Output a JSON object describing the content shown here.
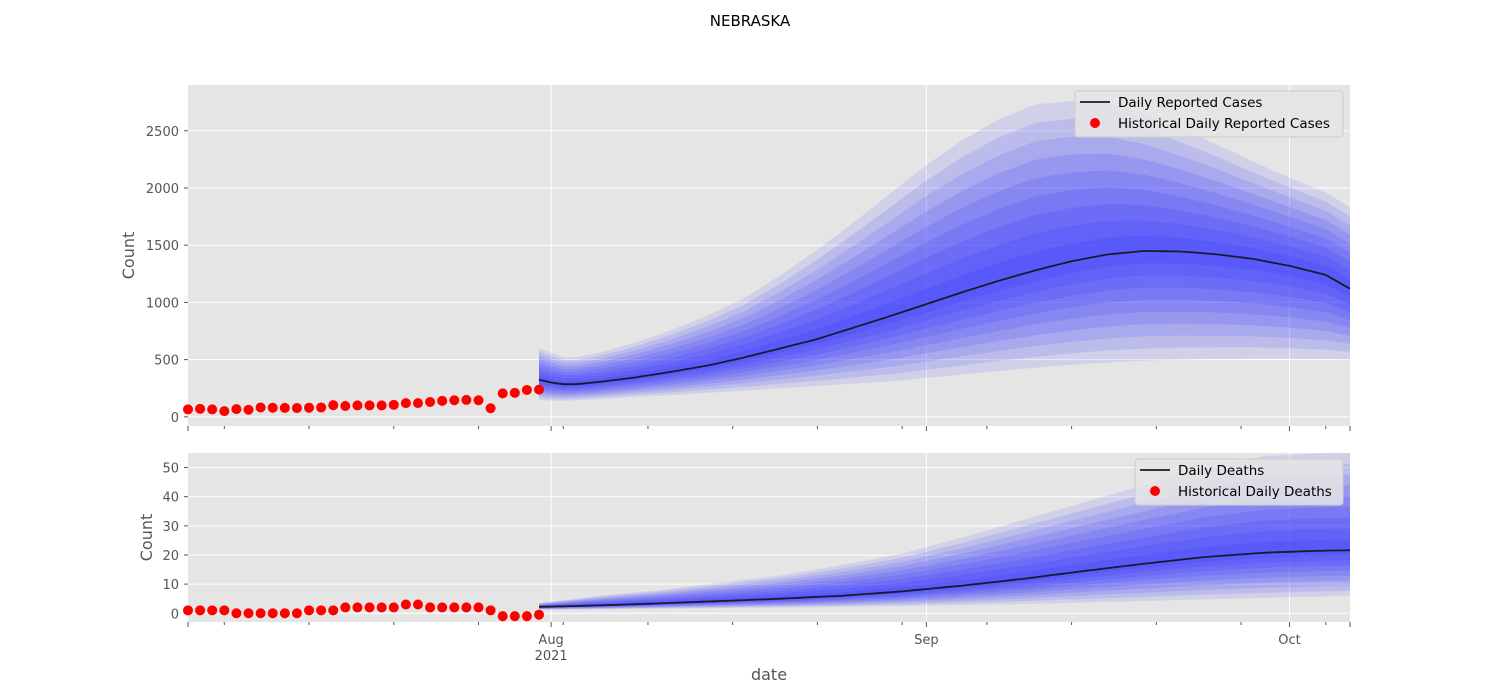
{
  "figure": {
    "title": "NEBRASKA",
    "xlabel": "date"
  },
  "colors": {
    "background": "#e5e5e5",
    "grid": "#ffffff",
    "median": "#1a1a2e",
    "band": "#3b3bff",
    "historical": "#ff0000"
  },
  "chart_data": [
    {
      "type": "line",
      "ylabel": "Count",
      "ylim": [
        -80,
        2900
      ],
      "yticks": [
        0,
        500,
        1000,
        1500,
        2000,
        2500
      ],
      "x_range": [
        "2021-07-02",
        "2021-10-06"
      ],
      "legend": {
        "position": "top-right",
        "entries": [
          "Daily Reported Cases",
          "Historical Daily Reported Cases"
        ]
      },
      "historical": {
        "name": "Historical Daily Reported Cases",
        "dates": [
          "2021-07-02",
          "2021-07-03",
          "2021-07-04",
          "2021-07-05",
          "2021-07-06",
          "2021-07-07",
          "2021-07-08",
          "2021-07-09",
          "2021-07-10",
          "2021-07-11",
          "2021-07-12",
          "2021-07-13",
          "2021-07-14",
          "2021-07-15",
          "2021-07-16",
          "2021-07-17",
          "2021-07-18",
          "2021-07-19",
          "2021-07-20",
          "2021-07-21",
          "2021-07-22",
          "2021-07-23",
          "2021-07-24",
          "2021-07-25",
          "2021-07-26",
          "2021-07-27",
          "2021-07-28",
          "2021-07-29",
          "2021-07-30",
          "2021-07-31"
        ],
        "values": [
          65,
          70,
          65,
          50,
          68,
          62,
          82,
          80,
          78,
          77,
          80,
          82,
          102,
          95,
          100,
          100,
          100,
          105,
          120,
          120,
          130,
          140,
          145,
          148,
          145,
          75,
          205,
          210,
          235,
          238
        ]
      },
      "forecast": {
        "name": "Daily Reported Cases",
        "dates": [
          "2021-07-31",
          "2021-08-01",
          "2021-08-02",
          "2021-08-03",
          "2021-08-05",
          "2021-08-08",
          "2021-08-11",
          "2021-08-14",
          "2021-08-17",
          "2021-08-20",
          "2021-08-23",
          "2021-08-26",
          "2021-08-29",
          "2021-09-01",
          "2021-09-04",
          "2021-09-07",
          "2021-09-10",
          "2021-09-13",
          "2021-09-16",
          "2021-09-19",
          "2021-09-22",
          "2021-09-25",
          "2021-09-28",
          "2021-10-01",
          "2021-10-04",
          "2021-10-06"
        ],
        "median": [
          325,
          300,
          285,
          285,
          305,
          345,
          395,
          450,
          520,
          600,
          680,
          780,
          880,
          985,
          1090,
          1190,
          1280,
          1360,
          1420,
          1450,
          1445,
          1420,
          1380,
          1320,
          1240,
          1120
        ],
        "lower": [
          150,
          140,
          140,
          145,
          155,
          175,
          190,
          210,
          230,
          250,
          270,
          290,
          310,
          340,
          370,
          400,
          430,
          455,
          475,
          490,
          500,
          505,
          510,
          510,
          505,
          500
        ],
        "upper": [
          600,
          560,
          520,
          520,
          560,
          650,
          760,
          890,
          1040,
          1240,
          1460,
          1700,
          1950,
          2200,
          2420,
          2600,
          2730,
          2760,
          2740,
          2650,
          2520,
          2380,
          2230,
          2090,
          1960,
          1830
        ]
      }
    },
    {
      "type": "line",
      "ylabel": "Count",
      "ylim": [
        -3,
        55
      ],
      "yticks": [
        0,
        10,
        20,
        30,
        40,
        50
      ],
      "x_range": [
        "2021-07-02",
        "2021-10-06"
      ],
      "xticks": [
        {
          "date": "2021-08-01",
          "label": "Aug",
          "sublabel": "2021"
        },
        {
          "date": "2021-09-01",
          "label": "Sep",
          "sublabel": ""
        },
        {
          "date": "2021-10-01",
          "label": "Oct",
          "sublabel": ""
        }
      ],
      "legend": {
        "position": "top-right",
        "entries": [
          "Daily Deaths",
          "Historical Daily Deaths"
        ]
      },
      "historical": {
        "name": "Historical Daily Deaths",
        "dates": [
          "2021-07-02",
          "2021-07-03",
          "2021-07-04",
          "2021-07-05",
          "2021-07-06",
          "2021-07-07",
          "2021-07-08",
          "2021-07-09",
          "2021-07-10",
          "2021-07-11",
          "2021-07-12",
          "2021-07-13",
          "2021-07-14",
          "2021-07-15",
          "2021-07-16",
          "2021-07-17",
          "2021-07-18",
          "2021-07-19",
          "2021-07-20",
          "2021-07-21",
          "2021-07-22",
          "2021-07-23",
          "2021-07-24",
          "2021-07-25",
          "2021-07-26",
          "2021-07-27",
          "2021-07-28",
          "2021-07-29",
          "2021-07-30",
          "2021-07-31"
        ],
        "values": [
          1,
          1,
          1,
          1,
          0,
          0,
          0,
          0,
          0,
          0,
          1,
          1,
          1,
          2,
          2,
          2,
          2,
          2,
          3,
          3,
          2,
          2,
          2,
          2,
          2,
          1,
          -1,
          -1,
          -1,
          -0.5
        ]
      },
      "forecast": {
        "name": "Daily Deaths",
        "dates": [
          "2021-07-31",
          "2021-08-05",
          "2021-08-10",
          "2021-08-15",
          "2021-08-20",
          "2021-08-25",
          "2021-08-30",
          "2021-09-04",
          "2021-09-09",
          "2021-09-14",
          "2021-09-19",
          "2021-09-24",
          "2021-09-29",
          "2021-10-04",
          "2021-10-06"
        ],
        "median": [
          2.2,
          2.7,
          3.4,
          4.2,
          5.0,
          6.0,
          7.5,
          9.5,
          11.8,
          14.5,
          17.0,
          19.3,
          20.8,
          21.5,
          21.6
        ],
        "lower": [
          1.2,
          1.4,
          1.6,
          1.8,
          2.0,
          2.2,
          2.5,
          2.8,
          3.2,
          3.7,
          4.2,
          4.8,
          5.3,
          5.8,
          6.0
        ],
        "upper": [
          3.5,
          6.0,
          8.0,
          10.5,
          13.0,
          16.5,
          20.5,
          26.0,
          32.0,
          38.0,
          44.0,
          50.0,
          54.0,
          55.0,
          55.0
        ]
      }
    }
  ]
}
